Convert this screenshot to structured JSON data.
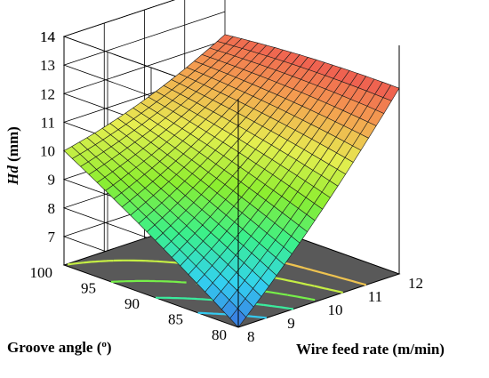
{
  "chart_data": {
    "type": "surface3d",
    "x": {
      "label": "Wire feed rate (m/min)",
      "ticks": [
        8,
        9,
        10,
        11,
        12
      ],
      "range": [
        8,
        12
      ]
    },
    "y": {
      "label": "Groove angle (°)",
      "label_prefix": "Groove angle (",
      "label_unit": "o",
      "label_suffix": ")",
      "ticks": [
        80,
        85,
        90,
        95,
        100
      ],
      "range": [
        80,
        100
      ]
    },
    "z": {
      "label_var": "Hd",
      "label_unit": " (mm)",
      "ticks": [
        7,
        8,
        9,
        10,
        11,
        12,
        13,
        14
      ],
      "range": [
        6,
        14
      ]
    },
    "surface_corners": [
      {
        "wire_feed_rate": 8,
        "groove_angle": 80,
        "hd": 6.0
      },
      {
        "wire_feed_rate": 12,
        "groove_angle": 80,
        "hd": 12.5
      },
      {
        "wire_feed_rate": 8,
        "groove_angle": 100,
        "hd": 10.0
      },
      {
        "wire_feed_rate": 12,
        "groove_angle": 100,
        "hd": 12.2
      }
    ],
    "mesh": {
      "nx": 21,
      "ny": 21
    },
    "contour_levels": [
      7,
      8,
      9,
      10,
      11
    ],
    "colors": {
      "floor": "#595959",
      "grid": "#000000",
      "colormap": [
        "#3b6fe0",
        "#33d2f0",
        "#3bf08a",
        "#8cee30",
        "#e6ee50",
        "#f4a050",
        "#ee5050"
      ]
    }
  }
}
